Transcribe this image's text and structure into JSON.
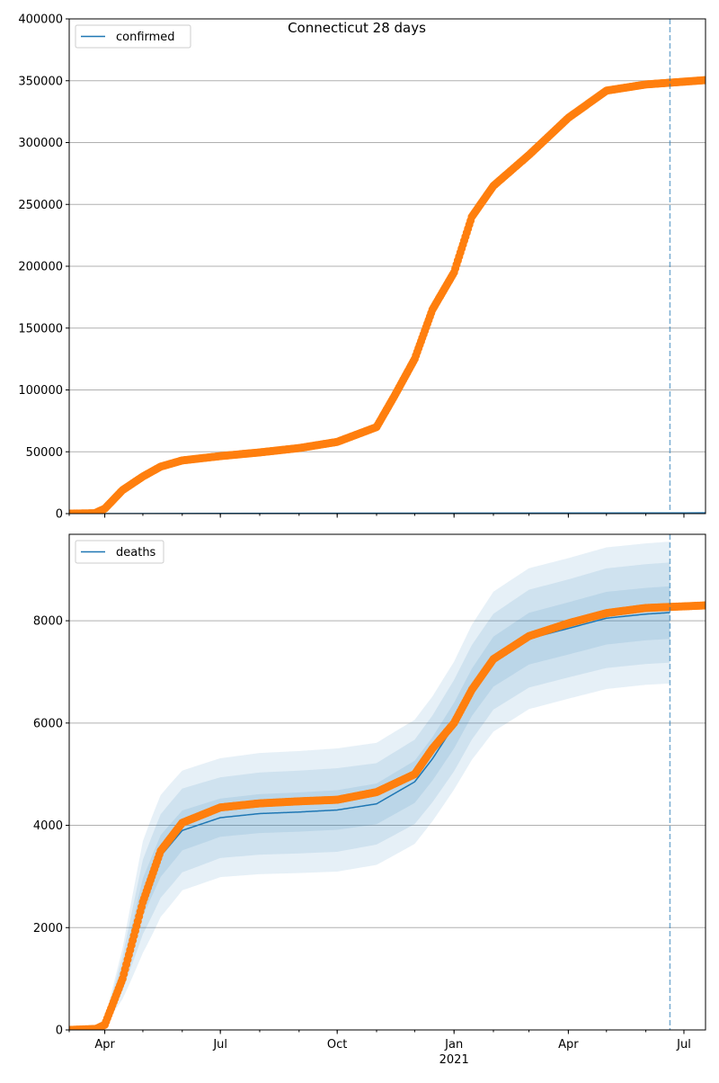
{
  "title": "Connecticut 28 days",
  "colors": {
    "observed": "#ff7f0e",
    "model": "#1f77b4",
    "grid": "#b0b0b0"
  },
  "chart_data": [
    {
      "type": "scatter",
      "legend": "confirmed",
      "legend_position": "top-left",
      "xlim": [
        "2020-03-04",
        "2021-07-18"
      ],
      "ylim": [
        0,
        400000
      ],
      "yticks": [
        0,
        50000,
        100000,
        150000,
        200000,
        250000,
        300000,
        350000,
        400000
      ],
      "yticklabels": [
        "0",
        "50000",
        "100000",
        "150000",
        "200000",
        "250000",
        "300000",
        "350000",
        "400000"
      ],
      "grid": "horizontal",
      "forecast_start": "2021-06-20",
      "observed": [
        [
          "2020-03-04",
          0
        ],
        [
          "2020-03-24",
          300
        ],
        [
          "2020-04-01",
          4000
        ],
        [
          "2020-04-15",
          19000
        ],
        [
          "2020-05-01",
          30000
        ],
        [
          "2020-05-15",
          38000
        ],
        [
          "2020-06-01",
          43000
        ],
        [
          "2020-07-01",
          46500
        ],
        [
          "2020-08-01",
          49500
        ],
        [
          "2020-09-01",
          53000
        ],
        [
          "2020-10-01",
          58000
        ],
        [
          "2020-11-01",
          70000
        ],
        [
          "2020-11-15",
          95000
        ],
        [
          "2020-12-01",
          125000
        ],
        [
          "2020-12-15",
          165000
        ],
        [
          "2021-01-01",
          195000
        ],
        [
          "2021-01-15",
          240000
        ],
        [
          "2021-02-01",
          265000
        ],
        [
          "2021-03-01",
          290000
        ],
        [
          "2021-04-01",
          320000
        ],
        [
          "2021-05-01",
          342000
        ],
        [
          "2021-06-01",
          347000
        ],
        [
          "2021-07-18",
          350500
        ]
      ],
      "model": [
        [
          "2020-03-04",
          0
        ],
        [
          "2021-07-18",
          600
        ]
      ]
    },
    {
      "type": "scatter",
      "legend": "deaths",
      "legend_position": "top-left",
      "xlim": [
        "2020-03-04",
        "2021-07-18"
      ],
      "ylim": [
        0,
        9690
      ],
      "yticks": [
        0,
        2000,
        4000,
        6000,
        8000
      ],
      "yticklabels": [
        "0",
        "2000",
        "4000",
        "6000",
        "8000"
      ],
      "grid": "horizontal",
      "forecast_start": "2021-06-20",
      "xticks": [
        {
          "date": "2020-04-01",
          "label": "Apr"
        },
        {
          "date": "2020-07-01",
          "label": "Jul"
        },
        {
          "date": "2020-10-01",
          "label": "Oct"
        },
        {
          "date": "2021-01-01",
          "label": "Jan",
          "sublabel": "2021"
        },
        {
          "date": "2021-04-01",
          "label": "Apr"
        },
        {
          "date": "2021-07-01",
          "label": "Jul"
        }
      ],
      "observed": [
        [
          "2020-03-04",
          0
        ],
        [
          "2020-03-25",
          20
        ],
        [
          "2020-04-01",
          100
        ],
        [
          "2020-04-15",
          1000
        ],
        [
          "2020-05-01",
          2500
        ],
        [
          "2020-05-15",
          3500
        ],
        [
          "2020-06-01",
          4050
        ],
        [
          "2020-07-01",
          4350
        ],
        [
          "2020-08-01",
          4430
        ],
        [
          "2020-09-01",
          4470
        ],
        [
          "2020-10-01",
          4500
        ],
        [
          "2020-11-01",
          4650
        ],
        [
          "2020-12-01",
          5000
        ],
        [
          "2020-12-15",
          5500
        ],
        [
          "2021-01-01",
          6000
        ],
        [
          "2021-01-15",
          6650
        ],
        [
          "2021-02-01",
          7250
        ],
        [
          "2021-03-01",
          7700
        ],
        [
          "2021-04-01",
          7950
        ],
        [
          "2021-05-01",
          8150
        ],
        [
          "2021-06-01",
          8250
        ],
        [
          "2021-07-18",
          8300
        ]
      ],
      "model_columns": [
        "date",
        "median",
        "band_inner_frac",
        "band_mid_frac",
        "band_outer_frac"
      ],
      "model": [
        [
          "2020-03-20",
          0,
          0.15,
          0.3,
          0.45
        ],
        [
          "2020-04-01",
          150,
          0.15,
          0.3,
          0.45
        ],
        [
          "2020-04-15",
          1100,
          0.15,
          0.3,
          0.45
        ],
        [
          "2020-05-01",
          2600,
          0.14,
          0.28,
          0.42
        ],
        [
          "2020-05-15",
          3400,
          0.12,
          0.24,
          0.35
        ],
        [
          "2020-06-01",
          3900,
          0.1,
          0.21,
          0.3
        ],
        [
          "2020-07-01",
          4150,
          0.09,
          0.19,
          0.28
        ],
        [
          "2020-08-01",
          4230,
          0.09,
          0.19,
          0.28
        ],
        [
          "2020-09-01",
          4260,
          0.09,
          0.19,
          0.28
        ],
        [
          "2020-10-01",
          4300,
          0.09,
          0.19,
          0.28
        ],
        [
          "2020-11-01",
          4420,
          0.09,
          0.18,
          0.27
        ],
        [
          "2020-12-01",
          4850,
          0.085,
          0.17,
          0.25
        ],
        [
          "2020-12-15",
          5300,
          0.08,
          0.16,
          0.23
        ],
        [
          "2021-01-01",
          5950,
          0.075,
          0.15,
          0.21
        ],
        [
          "2021-01-15",
          6600,
          0.07,
          0.14,
          0.2
        ],
        [
          "2021-02-01",
          7200,
          0.068,
          0.13,
          0.19
        ],
        [
          "2021-03-01",
          7650,
          0.066,
          0.125,
          0.18
        ],
        [
          "2021-04-01",
          7850,
          0.065,
          0.122,
          0.175
        ],
        [
          "2021-05-01",
          8050,
          0.064,
          0.121,
          0.172
        ],
        [
          "2021-06-01",
          8130,
          0.063,
          0.12,
          0.17
        ],
        [
          "2021-06-20",
          8160,
          0.063,
          0.12,
          0.17
        ]
      ]
    }
  ]
}
